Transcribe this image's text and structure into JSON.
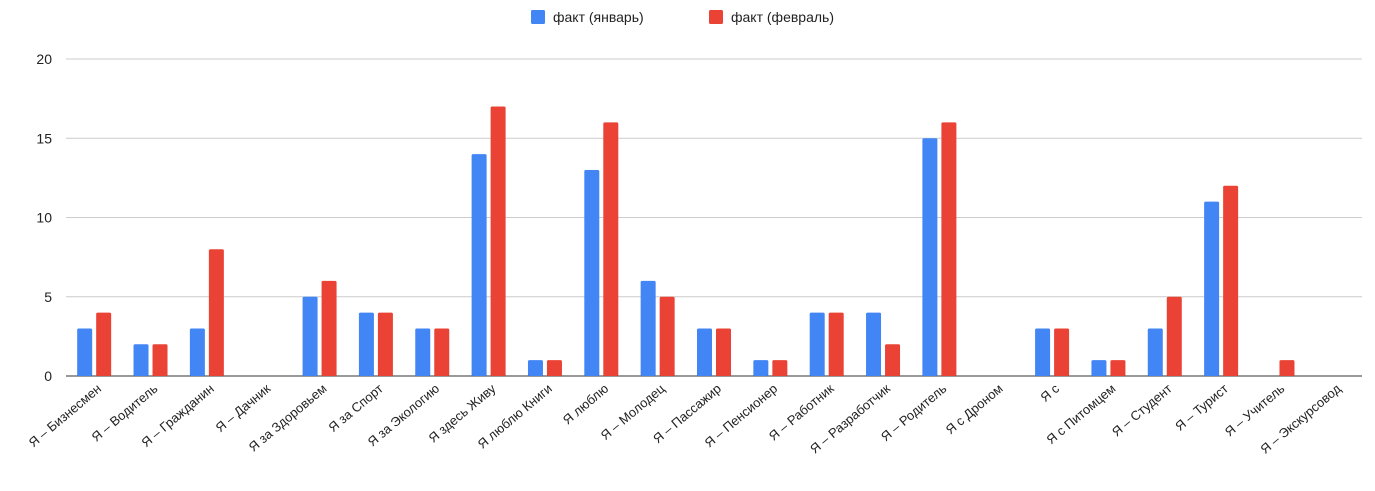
{
  "chart_data": {
    "type": "bar",
    "title": "",
    "xlabel": "",
    "ylabel": "",
    "ylim": [
      0,
      20
    ],
    "yticks": [
      0,
      5,
      10,
      15,
      20
    ],
    "grid": true,
    "legend_position": "top-center",
    "categories": [
      "Я – Бизнесмен",
      "Я – Водитель",
      "Я – Гражданин",
      "Я – Дачник",
      "Я за Здоровьем",
      "Я за Спорт",
      "Я за Экологию",
      "Я здесь Живу",
      "Я люблю Книги",
      "Я люблю",
      "Я – Молодец",
      "Я – Пассажир",
      "Я – Пенсионер",
      "Я – Работник",
      "Я – Разработчик",
      "Я – Родитель",
      "Я с Дроном",
      "Я с",
      "Я с Питомцем",
      "Я – Студент",
      "Я – Турист",
      "Я – Учитель",
      "Я – Экскурсовод"
    ],
    "series": [
      {
        "name": "факт (январь)",
        "color": "#4285f4",
        "values": [
          3,
          2,
          3,
          0,
          5,
          4,
          3,
          14,
          1,
          13,
          6,
          3,
          1,
          4,
          4,
          15,
          0,
          3,
          1,
          3,
          11,
          0,
          0
        ]
      },
      {
        "name": "факт (февраль)",
        "color": "#ea4335",
        "values": [
          4,
          2,
          8,
          0,
          6,
          4,
          3,
          17,
          1,
          16,
          5,
          3,
          1,
          4,
          2,
          16,
          0,
          3,
          1,
          5,
          12,
          1,
          0
        ]
      }
    ]
  }
}
